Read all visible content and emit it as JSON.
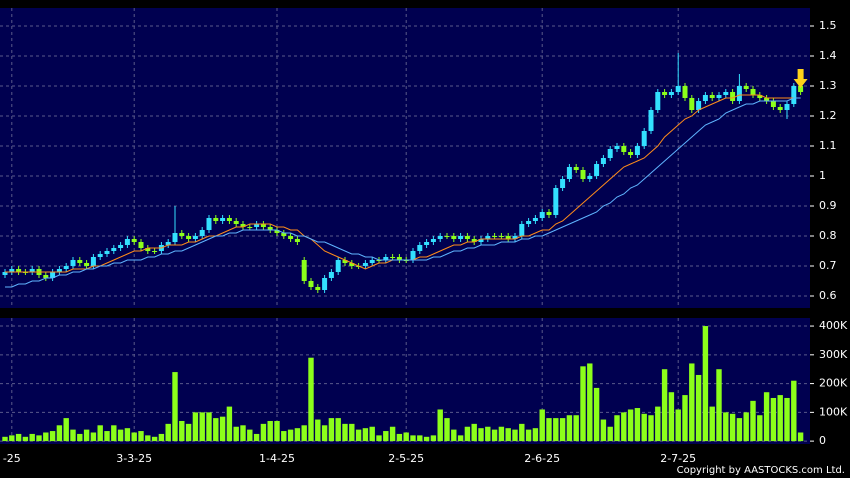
{
  "chart_data": [
    {
      "type": "candlestick",
      "up_color": "#33e0ff",
      "down_color": "#8cff1a",
      "background": "#000050",
      "ylim": [
        0.56,
        1.56
      ],
      "yticks": [
        0.6,
        0.7,
        0.8,
        0.9,
        1,
        1.1,
        1.2,
        1.3,
        1.4,
        1.5
      ],
      "grid": true,
      "open": [
        0.67,
        0.68,
        0.69,
        0.68,
        0.68,
        0.69,
        0.67,
        0.66,
        0.68,
        0.69,
        0.7,
        0.72,
        0.71,
        0.7,
        0.73,
        0.74,
        0.75,
        0.76,
        0.77,
        0.79,
        0.78,
        0.76,
        0.75,
        0.75,
        0.77,
        0.78,
        0.81,
        0.8,
        0.79,
        0.8,
        0.82,
        0.86,
        0.85,
        0.86,
        0.85,
        0.84,
        0.83,
        0.83,
        0.84,
        0.83,
        0.82,
        0.81,
        0.8,
        0.79,
        0.72,
        0.65,
        0.63,
        0.62,
        0.66,
        0.68,
        0.72,
        0.71,
        0.7,
        0.7,
        0.71,
        0.72,
        0.72,
        0.73,
        0.73,
        0.72,
        0.72,
        0.75,
        0.77,
        0.78,
        0.79,
        0.8,
        0.8,
        0.79,
        0.8,
        0.79,
        0.78,
        0.79,
        0.8,
        0.8,
        0.8,
        0.79,
        0.8,
        0.84,
        0.85,
        0.86,
        0.88,
        0.87,
        0.96,
        0.99,
        1.03,
        1.02,
        0.99,
        1.0,
        1.04,
        1.06,
        1.09,
        1.1,
        1.08,
        1.07,
        1.1,
        1.15,
        1.22,
        1.28,
        1.27,
        1.28,
        1.3,
        1.26,
        1.22,
        1.25,
        1.27,
        1.26,
        1.27,
        1.28,
        1.25,
        1.3,
        1.29,
        1.27,
        1.26,
        1.25,
        1.23,
        1.22,
        1.24,
        1.3
      ],
      "high": [
        0.69,
        0.7,
        0.7,
        0.69,
        0.7,
        0.7,
        0.68,
        0.69,
        0.7,
        0.71,
        0.73,
        0.73,
        0.72,
        0.74,
        0.75,
        0.76,
        0.77,
        0.78,
        0.8,
        0.8,
        0.79,
        0.77,
        0.76,
        0.78,
        0.79,
        0.9,
        0.82,
        0.81,
        0.81,
        0.83,
        0.87,
        0.87,
        0.87,
        0.87,
        0.86,
        0.85,
        0.84,
        0.85,
        0.85,
        0.84,
        0.83,
        0.82,
        0.81,
        0.8,
        0.73,
        0.66,
        0.64,
        0.67,
        0.69,
        0.73,
        0.73,
        0.72,
        0.71,
        0.72,
        0.73,
        0.73,
        0.74,
        0.74,
        0.74,
        0.73,
        0.76,
        0.78,
        0.79,
        0.8,
        0.81,
        0.81,
        0.81,
        0.81,
        0.81,
        0.8,
        0.8,
        0.81,
        0.81,
        0.81,
        0.81,
        0.81,
        0.85,
        0.86,
        0.87,
        0.89,
        0.89,
        0.97,
        1.0,
        1.04,
        1.04,
        1.03,
        1.01,
        1.05,
        1.07,
        1.1,
        1.11,
        1.11,
        1.09,
        1.11,
        1.16,
        1.23,
        1.29,
        1.29,
        1.29,
        1.41,
        1.31,
        1.27,
        1.26,
        1.28,
        1.28,
        1.28,
        1.29,
        1.29,
        1.34,
        1.31,
        1.3,
        1.28,
        1.27,
        1.26,
        1.24,
        1.25,
        1.31,
        1.31
      ],
      "low": [
        0.66,
        0.67,
        0.67,
        0.67,
        0.67,
        0.66,
        0.65,
        0.65,
        0.67,
        0.68,
        0.69,
        0.7,
        0.69,
        0.69,
        0.72,
        0.73,
        0.74,
        0.75,
        0.76,
        0.77,
        0.75,
        0.74,
        0.74,
        0.74,
        0.76,
        0.77,
        0.79,
        0.78,
        0.78,
        0.79,
        0.81,
        0.84,
        0.84,
        0.84,
        0.83,
        0.82,
        0.82,
        0.82,
        0.82,
        0.81,
        0.8,
        0.79,
        0.78,
        0.77,
        0.64,
        0.62,
        0.61,
        0.61,
        0.65,
        0.67,
        0.7,
        0.69,
        0.69,
        0.69,
        0.7,
        0.71,
        0.71,
        0.72,
        0.71,
        0.71,
        0.71,
        0.74,
        0.76,
        0.77,
        0.78,
        0.79,
        0.78,
        0.78,
        0.78,
        0.77,
        0.77,
        0.78,
        0.79,
        0.79,
        0.78,
        0.78,
        0.79,
        0.83,
        0.84,
        0.85,
        0.86,
        0.86,
        0.95,
        0.98,
        1.01,
        0.98,
        0.98,
        0.99,
        1.03,
        1.05,
        1.08,
        1.07,
        1.06,
        1.06,
        1.09,
        1.14,
        1.21,
        1.26,
        1.26,
        1.27,
        1.25,
        1.21,
        1.21,
        1.24,
        1.25,
        1.25,
        1.26,
        1.24,
        1.24,
        1.28,
        1.26,
        1.25,
        1.24,
        1.22,
        1.21,
        1.19,
        1.23,
        1.27
      ],
      "close": [
        0.68,
        0.69,
        0.68,
        0.68,
        0.69,
        0.67,
        0.66,
        0.68,
        0.69,
        0.7,
        0.72,
        0.71,
        0.7,
        0.73,
        0.74,
        0.75,
        0.76,
        0.77,
        0.79,
        0.78,
        0.76,
        0.75,
        0.75,
        0.77,
        0.78,
        0.81,
        0.8,
        0.79,
        0.8,
        0.82,
        0.86,
        0.85,
        0.86,
        0.85,
        0.84,
        0.83,
        0.83,
        0.84,
        0.83,
        0.82,
        0.81,
        0.8,
        0.79,
        0.78,
        0.65,
        0.63,
        0.62,
        0.66,
        0.68,
        0.72,
        0.71,
        0.7,
        0.7,
        0.71,
        0.72,
        0.72,
        0.73,
        0.73,
        0.72,
        0.72,
        0.75,
        0.77,
        0.78,
        0.79,
        0.8,
        0.8,
        0.79,
        0.8,
        0.79,
        0.78,
        0.79,
        0.8,
        0.8,
        0.8,
        0.79,
        0.8,
        0.84,
        0.85,
        0.86,
        0.88,
        0.87,
        0.96,
        0.99,
        1.03,
        1.02,
        0.99,
        1.0,
        1.04,
        1.06,
        1.09,
        1.1,
        1.08,
        1.07,
        1.1,
        1.15,
        1.22,
        1.28,
        1.27,
        1.28,
        1.3,
        1.26,
        1.22,
        1.25,
        1.27,
        1.26,
        1.27,
        1.28,
        1.25,
        1.3,
        1.29,
        1.27,
        1.26,
        1.25,
        1.23,
        1.22,
        1.24,
        1.3,
        1.28
      ],
      "overlays": [
        {
          "color": "#ff8c1a",
          "values": [
            0.68,
            0.68,
            0.68,
            0.68,
            0.68,
            0.68,
            0.68,
            0.68,
            0.68,
            0.68,
            0.69,
            0.69,
            0.69,
            0.7,
            0.7,
            0.71,
            0.72,
            0.73,
            0.74,
            0.75,
            0.75,
            0.76,
            0.76,
            0.76,
            0.77,
            0.77,
            0.77,
            0.78,
            0.78,
            0.79,
            0.8,
            0.8,
            0.81,
            0.82,
            0.83,
            0.83,
            0.84,
            0.84,
            0.84,
            0.84,
            0.83,
            0.83,
            0.82,
            0.82,
            0.8,
            0.79,
            0.77,
            0.75,
            0.74,
            0.73,
            0.72,
            0.71,
            0.7,
            0.69,
            0.7,
            0.71,
            0.71,
            0.72,
            0.72,
            0.72,
            0.72,
            0.73,
            0.73,
            0.74,
            0.75,
            0.76,
            0.77,
            0.77,
            0.78,
            0.78,
            0.79,
            0.79,
            0.79,
            0.79,
            0.79,
            0.79,
            0.8,
            0.8,
            0.81,
            0.82,
            0.82,
            0.84,
            0.85,
            0.87,
            0.89,
            0.91,
            0.93,
            0.95,
            0.97,
            0.99,
            1.01,
            1.03,
            1.04,
            1.05,
            1.06,
            1.08,
            1.1,
            1.13,
            1.15,
            1.17,
            1.19,
            1.2,
            1.22,
            1.23,
            1.24,
            1.25,
            1.26,
            1.26,
            1.27,
            1.27,
            1.27,
            1.27,
            1.26,
            1.26,
            1.26,
            1.26,
            1.26,
            1.26
          ]
        },
        {
          "color": "#5fb4ff",
          "values": [
            0.63,
            0.63,
            0.64,
            0.64,
            0.65,
            0.65,
            0.66,
            0.66,
            0.67,
            0.67,
            0.68,
            0.68,
            0.69,
            0.69,
            0.7,
            0.7,
            0.71,
            0.71,
            0.72,
            0.72,
            0.72,
            0.73,
            0.73,
            0.74,
            0.74,
            0.75,
            0.75,
            0.76,
            0.77,
            0.78,
            0.79,
            0.8,
            0.8,
            0.81,
            0.81,
            0.82,
            0.82,
            0.82,
            0.82,
            0.82,
            0.82,
            0.81,
            0.81,
            0.8,
            0.8,
            0.79,
            0.78,
            0.78,
            0.77,
            0.76,
            0.75,
            0.74,
            0.74,
            0.73,
            0.73,
            0.72,
            0.72,
            0.72,
            0.72,
            0.72,
            0.72,
            0.72,
            0.72,
            0.73,
            0.73,
            0.74,
            0.75,
            0.75,
            0.76,
            0.76,
            0.77,
            0.77,
            0.77,
            0.78,
            0.78,
            0.78,
            0.79,
            0.79,
            0.8,
            0.8,
            0.81,
            0.82,
            0.83,
            0.84,
            0.85,
            0.86,
            0.87,
            0.88,
            0.9,
            0.91,
            0.93,
            0.94,
            0.96,
            0.97,
            0.99,
            1.01,
            1.03,
            1.05,
            1.07,
            1.09,
            1.11,
            1.13,
            1.15,
            1.17,
            1.18,
            1.19,
            1.21,
            1.22,
            1.23,
            1.24,
            1.24,
            1.25,
            1.25,
            1.25,
            1.25,
            1.25,
            1.26,
            1.26
          ]
        }
      ]
    },
    {
      "type": "bar",
      "color": "#8cff1a",
      "background": "#000050",
      "ylim": [
        -10000,
        428000
      ],
      "yticks": [
        0,
        {
          "value": 100000,
          "label": "100K"
        },
        {
          "value": 200000,
          "label": "200K"
        },
        {
          "value": 300000,
          "label": "300K"
        },
        {
          "value": 400000,
          "label": "400K"
        }
      ],
      "grid": true,
      "categories": [
        null,
        "-25",
        null,
        null,
        null,
        null,
        null,
        null,
        null,
        null,
        null,
        null,
        null,
        null,
        null,
        null,
        null,
        null,
        null,
        "3-3-25",
        null,
        null,
        null,
        null,
        null,
        null,
        null,
        null,
        null,
        null,
        null,
        null,
        null,
        null,
        null,
        null,
        null,
        null,
        null,
        null,
        "1-4-25",
        null,
        null,
        null,
        null,
        null,
        null,
        null,
        null,
        null,
        null,
        null,
        null,
        null,
        null,
        null,
        null,
        null,
        null,
        "2-5-25",
        null,
        null,
        null,
        null,
        null,
        null,
        null,
        null,
        null,
        null,
        null,
        null,
        null,
        null,
        null,
        null,
        null,
        null,
        null,
        "2-6-25",
        null,
        null,
        null,
        null,
        null,
        null,
        null,
        null,
        null,
        null,
        null,
        null,
        null,
        null,
        null,
        null,
        null,
        null,
        null,
        "2-7-25",
        null,
        null,
        null,
        null,
        null,
        null,
        null,
        null,
        null,
        null,
        null,
        null,
        null,
        null,
        null,
        null,
        null,
        null
      ],
      "values": [
        15000,
        20000,
        25000,
        15000,
        25000,
        20000,
        30000,
        35000,
        55000,
        80000,
        40000,
        25000,
        40000,
        30000,
        55000,
        35000,
        55000,
        40000,
        45000,
        30000,
        35000,
        20000,
        15000,
        25000,
        60000,
        240000,
        70000,
        60000,
        100000,
        100000,
        100000,
        80000,
        85000,
        120000,
        50000,
        55000,
        40000,
        25000,
        60000,
        70000,
        70000,
        35000,
        40000,
        45000,
        55000,
        290000,
        75000,
        55000,
        80000,
        80000,
        60000,
        60000,
        40000,
        45000,
        50000,
        20000,
        35000,
        50000,
        25000,
        30000,
        20000,
        20000,
        15000,
        20000,
        110000,
        80000,
        40000,
        20000,
        50000,
        60000,
        45000,
        50000,
        40000,
        50000,
        45000,
        40000,
        60000,
        40000,
        45000,
        110000,
        80000,
        80000,
        80000,
        90000,
        90000,
        260000,
        270000,
        185000,
        75000,
        50000,
        90000,
        100000,
        110000,
        115000,
        95000,
        90000,
        120000,
        250000,
        170000,
        110000,
        160000,
        270000,
        230000,
        400000,
        120000,
        250000,
        100000,
        95000,
        80000,
        100000,
        140000,
        90000,
        170000,
        150000,
        160000,
        150000,
        210000,
        30000
      ]
    }
  ],
  "copyright": "Copyright by AASTOCKS.com Ltd."
}
